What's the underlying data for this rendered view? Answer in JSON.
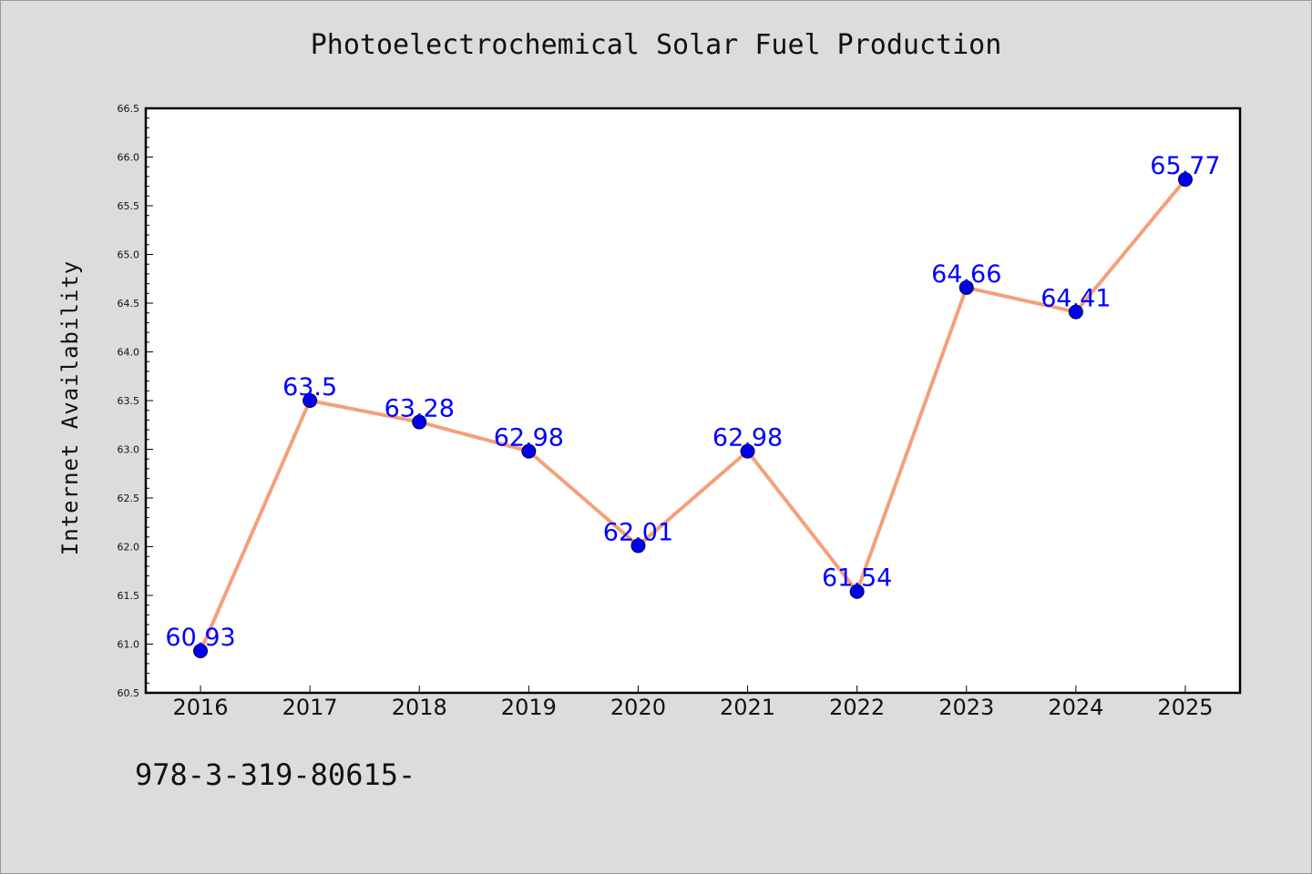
{
  "chart_data": {
    "type": "line",
    "title": "Photoelectrochemical Solar Fuel Production",
    "xlabel": "",
    "ylabel": "Internet Availability",
    "x": [
      "2016",
      "2017",
      "2018",
      "2019",
      "2020",
      "2021",
      "2022",
      "2023",
      "2024",
      "2025"
    ],
    "series": [
      {
        "values": [
          60.93,
          63.5,
          63.28,
          62.98,
          62.01,
          62.98,
          61.54,
          64.66,
          64.41,
          65.77
        ],
        "labels": [
          "60.93",
          "63.5",
          "63.28",
          "62.98",
          "62.01",
          "62.98",
          "61.54",
          "64.66",
          "64.41",
          "65.77"
        ],
        "line_color": "#f4a07a",
        "marker_color": "#0000ee",
        "label_color": "#0000ff"
      }
    ],
    "ylim": [
      60.5,
      66.5
    ],
    "yticks": [
      "60.5",
      "61.0",
      "61.5",
      "62.0",
      "62.5",
      "63.0",
      "63.5",
      "64.0",
      "64.5",
      "65.0",
      "65.5",
      "66.0",
      "66.5"
    ],
    "grid": false,
    "legend": "none"
  },
  "footnote": "978-3-319-80615-",
  "colors": {
    "background": "#dcdcdc",
    "plot_area": "#ffffff",
    "axes": "#000000"
  }
}
